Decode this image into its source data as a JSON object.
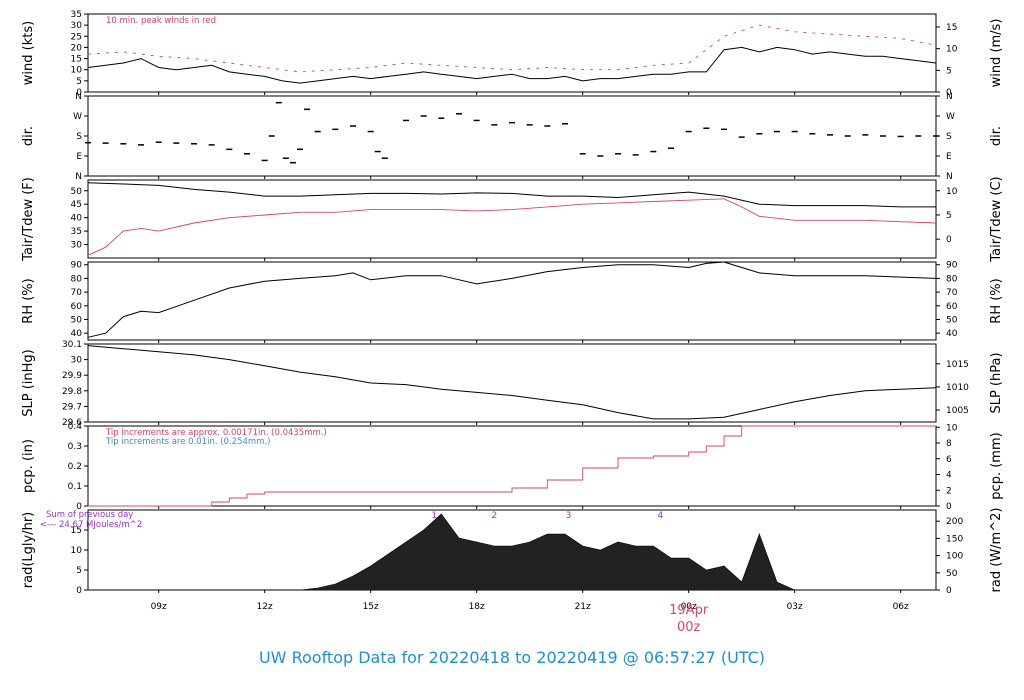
{
  "footer": {
    "title": "UW Rooftop Data for 20220418  to  20220419 @ 06:57:27  (UTC)"
  },
  "xaxis": {
    "range_hours": [
      7.0,
      31.0
    ],
    "ticks": [
      {
        "h": 9,
        "label": "09z"
      },
      {
        "h": 12,
        "label": "12z"
      },
      {
        "h": 15,
        "label": "15z"
      },
      {
        "h": 18,
        "label": "18z"
      },
      {
        "h": 21,
        "label": "21z"
      },
      {
        "h": 24,
        "label": "00z"
      },
      {
        "h": 27,
        "label": "03z"
      },
      {
        "h": 30,
        "label": "06z"
      }
    ],
    "date_label": "19Apr",
    "date_label_hour": 24,
    "date_color": "#e0406a"
  },
  "colors": {
    "black": "#000000",
    "red": "#e0406a",
    "blue": "#3b8fd6",
    "purple": "#9b30d9"
  },
  "chart_data": [
    {
      "type": "line",
      "id": "wind",
      "ylabel_left": "wind (kts)",
      "ylabel_right": "wind (m/s)",
      "ylim": [
        0,
        35
      ],
      "yticks": [
        0,
        5,
        10,
        15,
        20,
        25,
        30,
        35
      ],
      "right_ticks": [
        {
          "v": 0,
          "label": "0"
        },
        {
          "v": 9.72,
          "label": "5"
        },
        {
          "v": 19.44,
          "label": "10"
        },
        {
          "v": 29.16,
          "label": "15"
        }
      ],
      "annotations": [
        {
          "text": "10 min. peak winds in red",
          "color": "red"
        }
      ],
      "series": [
        {
          "color": "black",
          "x": [
            7.0,
            7.5,
            8.0,
            8.5,
            9.0,
            9.5,
            10.0,
            10.5,
            11.0,
            11.5,
            12.0,
            12.5,
            13.0,
            13.5,
            14.0,
            14.5,
            15.0,
            15.5,
            16.0,
            16.5,
            17.0,
            17.5,
            18.0,
            18.5,
            19.0,
            19.5,
            20.0,
            20.5,
            21.0,
            21.5,
            22.0,
            22.5,
            23.0,
            23.5,
            24.0,
            24.5,
            25.0,
            25.5,
            26.0,
            26.5,
            27.0,
            27.5,
            28.0,
            28.5,
            29.0,
            29.5,
            30.0,
            30.5,
            31.0
          ],
          "y": [
            11,
            12,
            13,
            15,
            11,
            10,
            11,
            12,
            9,
            8,
            7,
            5,
            4,
            5,
            6,
            7,
            6,
            7,
            8,
            9,
            8,
            7,
            6,
            7,
            8,
            6,
            6,
            7,
            5,
            6,
            6,
            7,
            8,
            8,
            9,
            9,
            19,
            20,
            18,
            20,
            19,
            17,
            18,
            17,
            16,
            16,
            15,
            14,
            13
          ]
        },
        {
          "color": "red",
          "style": "dash",
          "x": [
            7.0,
            8.0,
            9.0,
            10.0,
            11.0,
            12.0,
            13.0,
            14.0,
            15.0,
            16.0,
            17.0,
            18.0,
            19.0,
            20.0,
            21.0,
            22.0,
            23.0,
            24.0,
            25.0,
            26.0,
            27.0,
            28.0,
            29.0,
            30.0,
            31.0
          ],
          "y": [
            17,
            18,
            16,
            15,
            13,
            11,
            9,
            10,
            11,
            13,
            12,
            11,
            10,
            11,
            10,
            10,
            12,
            13,
            25,
            30,
            27,
            26,
            25,
            24,
            21
          ]
        }
      ]
    },
    {
      "type": "scatter",
      "id": "dir",
      "ylabel_left": "dir.",
      "ylabel_right": "dir.",
      "ylim": [
        0,
        360
      ],
      "yticks": [
        {
          "v": 0,
          "label": "N"
        },
        {
          "v": 90,
          "label": "E"
        },
        {
          "v": 180,
          "label": "S"
        },
        {
          "v": 270,
          "label": "W"
        },
        {
          "v": 360,
          "label": "N"
        }
      ],
      "right_ticks": [
        {
          "v": 0,
          "label": "N"
        },
        {
          "v": 90,
          "label": "E"
        },
        {
          "v": 180,
          "label": "S"
        },
        {
          "v": 270,
          "label": "W"
        },
        {
          "v": 360,
          "label": "N"
        }
      ],
      "series": [
        {
          "color": "black",
          "x": [
            7.0,
            7.5,
            8.0,
            8.5,
            9.0,
            9.5,
            10.0,
            10.5,
            11.0,
            11.5,
            12.0,
            12.2,
            12.4,
            12.6,
            12.8,
            13.0,
            13.2,
            13.5,
            14.0,
            14.5,
            15.0,
            15.2,
            15.4,
            16.0,
            16.5,
            17.0,
            17.5,
            18.0,
            18.5,
            19.0,
            19.5,
            20.0,
            20.5,
            21.0,
            21.5,
            22.0,
            22.5,
            23.0,
            23.5,
            24.0,
            24.5,
            25.0,
            25.5,
            26.0,
            26.5,
            27.0,
            27.5,
            28.0,
            28.5,
            29.0,
            29.5,
            30.0,
            30.5,
            31.0
          ],
          "y": [
            150,
            148,
            145,
            140,
            152,
            148,
            145,
            140,
            120,
            100,
            70,
            180,
            330,
            80,
            60,
            120,
            300,
            200,
            210,
            225,
            200,
            110,
            80,
            250,
            270,
            260,
            280,
            250,
            230,
            240,
            230,
            225,
            235,
            100,
            90,
            100,
            95,
            110,
            125,
            200,
            215,
            210,
            175,
            190,
            200,
            200,
            190,
            185,
            180,
            185,
            180,
            178,
            180,
            180
          ]
        }
      ]
    },
    {
      "type": "line",
      "id": "temp",
      "ylabel_left": "Tair/Tdew (F)",
      "ylabel_right": "Tair/Tdew (C)",
      "ylim": [
        25,
        54
      ],
      "yticks": [
        30,
        35,
        40,
        45,
        50
      ],
      "right_ticks": [
        {
          "v": 32,
          "label": "0"
        },
        {
          "v": 41,
          "label": "5"
        },
        {
          "v": 50,
          "label": "10"
        }
      ],
      "series": [
        {
          "color": "black",
          "x": [
            7.0,
            8.0,
            9.0,
            10.0,
            11.0,
            12.0,
            13.0,
            14.0,
            15.0,
            16.0,
            17.0,
            18.0,
            19.0,
            20.0,
            21.0,
            22.0,
            23.0,
            24.0,
            25.0,
            26.0,
            27.0,
            28.0,
            29.0,
            30.0,
            31.0
          ],
          "y": [
            53,
            52.5,
            52,
            50.5,
            49.5,
            48,
            48,
            48.5,
            49,
            49,
            48.8,
            49.2,
            49,
            48,
            48,
            47.5,
            48.5,
            49.5,
            48,
            45,
            44.5,
            44.5,
            44.5,
            44,
            44
          ]
        },
        {
          "color": "red",
          "x": [
            7.0,
            7.5,
            8.0,
            8.5,
            9.0,
            10.0,
            11.0,
            12.0,
            13.0,
            14.0,
            15.0,
            16.0,
            17.0,
            18.0,
            19.0,
            20.0,
            21.0,
            22.0,
            23.0,
            24.0,
            25.0,
            25.5,
            26.0,
            27.0,
            28.0,
            29.0,
            30.0,
            31.0
          ],
          "y": [
            26,
            29,
            35,
            36,
            35,
            38,
            40,
            41,
            42,
            42,
            43,
            43,
            43,
            42.5,
            43,
            44,
            45,
            45.5,
            46,
            46.5,
            47,
            44,
            40.5,
            39,
            39,
            39,
            38.5,
            38
          ]
        }
      ]
    },
    {
      "type": "line",
      "id": "rh",
      "ylabel_left": "RH (%)",
      "ylabel_right": "RH (%)",
      "ylim": [
        35,
        92
      ],
      "yticks": [
        40,
        50,
        60,
        70,
        80,
        90
      ],
      "right_ticks": [
        {
          "v": 40,
          "label": "40"
        },
        {
          "v": 50,
          "label": "50"
        },
        {
          "v": 60,
          "label": "60"
        },
        {
          "v": 70,
          "label": "70"
        },
        {
          "v": 80,
          "label": "80"
        },
        {
          "v": 90,
          "label": "90"
        }
      ],
      "series": [
        {
          "color": "black",
          "x": [
            7.0,
            7.5,
            8.0,
            8.5,
            9.0,
            10.0,
            11.0,
            12.0,
            13.0,
            14.0,
            14.5,
            15.0,
            16.0,
            17.0,
            18.0,
            19.0,
            20.0,
            21.0,
            22.0,
            23.0,
            24.0,
            24.5,
            25.0,
            25.5,
            26.0,
            27.0,
            28.0,
            29.0,
            30.0,
            31.0
          ],
          "y": [
            37,
            40,
            52,
            56,
            55,
            64,
            73,
            78,
            80,
            82,
            84,
            79,
            82,
            82,
            76,
            80,
            85,
            88,
            90,
            90,
            88,
            91,
            92,
            88,
            84,
            82,
            82,
            82,
            81,
            80
          ]
        }
      ]
    },
    {
      "type": "line",
      "id": "slp",
      "ylabel_left": "SLP (inHg)",
      "ylabel_right": "SLP (hPa)",
      "ylim": [
        29.6,
        30.1
      ],
      "yticks": [
        29.6,
        29.7,
        29.8,
        29.9,
        30.0,
        30.1
      ],
      "right_ticks": [
        {
          "v": 29.677,
          "label": "1005"
        },
        {
          "v": 29.825,
          "label": "1010"
        },
        {
          "v": 29.973,
          "label": "1015"
        }
      ],
      "series": [
        {
          "color": "black",
          "x": [
            7.0,
            8.0,
            9.0,
            10.0,
            11.0,
            12.0,
            13.0,
            14.0,
            15.0,
            16.0,
            17.0,
            18.0,
            19.0,
            20.0,
            21.0,
            22.0,
            23.0,
            24.0,
            25.0,
            26.0,
            27.0,
            28.0,
            29.0,
            30.0,
            31.0
          ],
          "y": [
            30.09,
            30.07,
            30.05,
            30.03,
            30.0,
            29.96,
            29.92,
            29.89,
            29.85,
            29.84,
            29.81,
            29.79,
            29.77,
            29.74,
            29.71,
            29.66,
            29.62,
            29.62,
            29.63,
            29.68,
            29.73,
            29.77,
            29.8,
            29.81,
            29.82
          ]
        }
      ]
    },
    {
      "type": "line",
      "id": "pcp",
      "ylabel_left": "pcp. (in)",
      "ylabel_right": "pcp. (mm)",
      "ylim": [
        0,
        0.4
      ],
      "yticks": [
        0.0,
        0.1,
        0.2,
        0.3,
        0.4
      ],
      "right_ticks": [
        {
          "v": 0,
          "label": "0"
        },
        {
          "v": 0.0787,
          "label": "2"
        },
        {
          "v": 0.1575,
          "label": "4"
        },
        {
          "v": 0.2362,
          "label": "6"
        },
        {
          "v": 0.315,
          "label": "8"
        },
        {
          "v": 0.3937,
          "label": "10"
        }
      ],
      "annotations": [
        {
          "text": "Tip increments are approx. 0.00171in. (0.0435mm.)",
          "color": "red"
        },
        {
          "text": "Tip increments are 0.01in. (0.254mm.)",
          "color": "blue"
        }
      ],
      "series": [
        {
          "color": "red",
          "style": "step",
          "x": [
            7.0,
            10.0,
            10.5,
            11.0,
            11.5,
            12.0,
            13.0,
            18.0,
            19.0,
            20.0,
            21.0,
            22.0,
            23.0,
            24.0,
            24.5,
            25.0,
            25.5,
            26.0,
            31.0
          ],
          "y": [
            0,
            0,
            0.02,
            0.04,
            0.06,
            0.07,
            0.07,
            0.07,
            0.09,
            0.13,
            0.19,
            0.24,
            0.25,
            0.27,
            0.3,
            0.35,
            0.4,
            0.4,
            0.4
          ]
        }
      ]
    },
    {
      "type": "area",
      "id": "rad",
      "ylabel_left": "rad(Lgly/hr)",
      "ylabel_right": "rad (W/m^2)",
      "ylim": [
        0,
        20
      ],
      "yticks": [
        0,
        5,
        10,
        15
      ],
      "right_ticks": [
        {
          "v": 0,
          "label": "0"
        },
        {
          "v": 4.3,
          "label": "50"
        },
        {
          "v": 8.6,
          "label": "100"
        },
        {
          "v": 12.9,
          "label": "150"
        },
        {
          "v": 17.2,
          "label": "200"
        }
      ],
      "annotations": [
        {
          "text": "Sum of previous day",
          "color": "purple"
        },
        {
          "text": "<--- 24.67 MJoules/m^2",
          "color": "purple"
        }
      ],
      "markers": [
        {
          "x": 16.8,
          "label": "1"
        },
        {
          "x": 18.5,
          "label": "2"
        },
        {
          "x": 20.6,
          "label": "3"
        },
        {
          "x": 23.2,
          "label": "4"
        }
      ],
      "series": [
        {
          "color": "black",
          "x": [
            13.0,
            13.5,
            14.0,
            14.5,
            15.0,
            15.5,
            16.0,
            16.5,
            17.0,
            17.5,
            18.0,
            18.5,
            19.0,
            19.5,
            20.0,
            20.5,
            21.0,
            21.5,
            22.0,
            22.5,
            23.0,
            23.5,
            24.0,
            24.5,
            25.0,
            25.5,
            26.0,
            26.5,
            27.0,
            27.5
          ],
          "y": [
            0,
            0.5,
            1.5,
            3.5,
            6,
            9,
            12,
            15,
            19,
            13,
            12,
            11,
            11,
            12,
            14,
            14,
            11,
            10,
            12,
            11,
            11,
            8,
            8,
            5,
            6,
            2,
            14,
            2,
            0,
            0
          ]
        }
      ]
    }
  ]
}
